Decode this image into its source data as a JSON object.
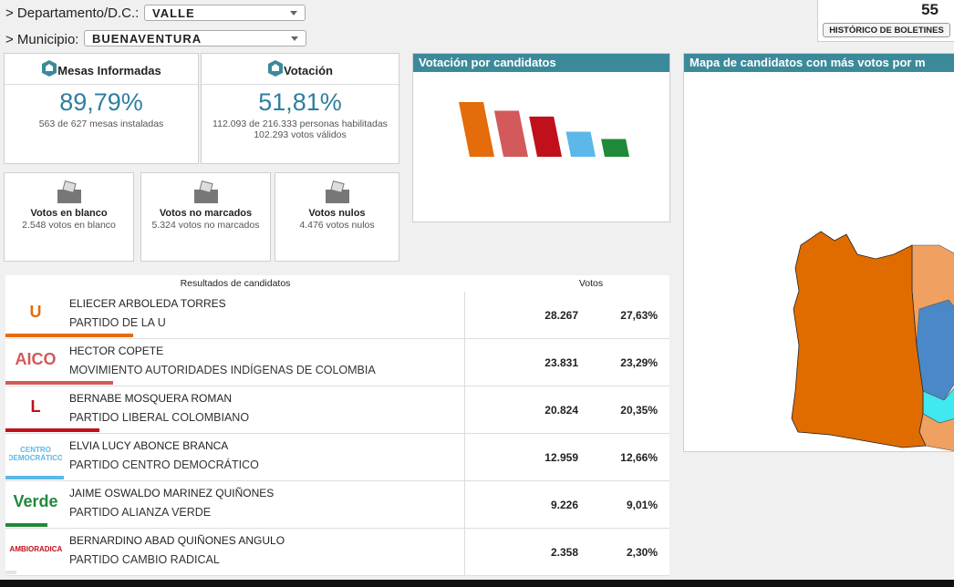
{
  "filters": [
    {
      "label": "> Departamento/D.C.:",
      "value": "VALLE"
    },
    {
      "label": "> Municipio:",
      "value": "BUENAVENTURA"
    }
  ],
  "boletin": {
    "number": "55",
    "button": "HISTÓRICO DE BOLETINES"
  },
  "mesas": {
    "title": "Mesas Informadas",
    "percent": "89,79%",
    "detail": "563 de 627 mesas instaladas"
  },
  "votacion": {
    "title": "Votación",
    "percent": "51,81%",
    "details": [
      "112.093 de 216.333 personas habilitadas",
      "102.293 votos válidos"
    ]
  },
  "special_votes": [
    {
      "title": "Votos en blanco",
      "detail": "2.548 votos en blanco"
    },
    {
      "title": "Votos no marcados",
      "detail": "5.324 votos no marcados"
    },
    {
      "title": "Votos nulos",
      "detail": "4.476 votos nulos"
    }
  ],
  "chart_panel": {
    "title": "Votación por candidatos"
  },
  "map_panel": {
    "title": "Mapa de candidatos con más votos por m"
  },
  "table": {
    "header": "Resultados de candidatos",
    "votes_header": "Votos",
    "candidates": [
      {
        "logo": "U",
        "name": "ELIECER ARBOLEDA TORRES",
        "party": "PARTIDO DE LA U",
        "votes": "28.267",
        "percent": "27,63%",
        "share": 27.63,
        "color": "#e46c0a"
      },
      {
        "logo": "AICO",
        "name": "HECTOR COPETE",
        "party": "MOVIMIENTO AUTORIDADES INDÍGENAS DE COLOMBIA",
        "votes": "23.831",
        "percent": "23,29%",
        "share": 23.29,
        "color": "#d25a5a"
      },
      {
        "logo": "L",
        "name": "BERNABE MOSQUERA ROMAN",
        "party": "PARTIDO LIBERAL COLOMBIANO",
        "votes": "20.824",
        "percent": "20,35%",
        "share": 20.35,
        "color": "#c0101c"
      },
      {
        "logo": "CENTRO DEMOCRÁTICO",
        "name": "ELVIA LUCY ABONCE BRANCA",
        "party": "PARTIDO CENTRO DEMOCRÁTICO",
        "votes": "12.959",
        "percent": "12,66%",
        "share": 12.66,
        "color": "#5bb8e8"
      },
      {
        "logo": "Verde",
        "name": "JAIME OSWALDO MARINEZ QUIÑONES",
        "party": "PARTIDO ALIANZA VERDE",
        "votes": "9.226",
        "percent": "9,01%",
        "share": 9.01,
        "color": "#1f8a3a"
      },
      {
        "logo": "CAMBIORADICAL",
        "name": "BERNARDINO ABAD QUIÑONES ANGULO",
        "party": "PARTIDO CAMBIO RADICAL",
        "votes": "2.358",
        "percent": "2,30%",
        "share": 2.3,
        "color": "#e5e5e5"
      }
    ]
  }
}
